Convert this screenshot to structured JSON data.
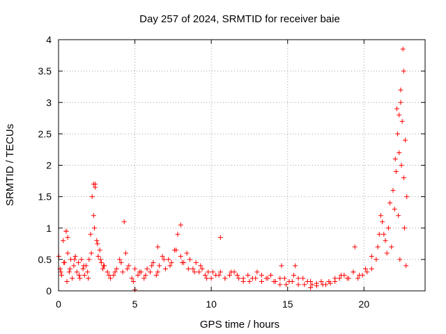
{
  "chart_data": {
    "type": "scatter",
    "title": "Day 257 of 2024, SRMTID for receiver baie",
    "xlabel": "GPS time / hours",
    "ylabel": "SRMTID / TECUs",
    "xlim": [
      0,
      24
    ],
    "ylim": [
      0,
      4
    ],
    "xticks": [
      0,
      5,
      10,
      15,
      20
    ],
    "yticks": [
      0,
      0.5,
      1,
      1.5,
      2,
      2.5,
      3,
      3.5,
      4
    ],
    "xtick_labels": [
      "0",
      "5",
      "10",
      "15",
      "20"
    ],
    "ytick_labels": [
      "0",
      "0.5",
      "1",
      "1.5",
      "2",
      "2.5",
      "3",
      "3.5",
      "4"
    ],
    "grid": true,
    "marker": "+",
    "color": "#ff0000",
    "series": [
      {
        "name": "SRMTID",
        "x": [
          0.02,
          0.1,
          0.2,
          0.3,
          0.4,
          0.5,
          0.6,
          0.7,
          0.8,
          0.9,
          1.0,
          1.1,
          1.2,
          1.3,
          1.4,
          1.5,
          1.6,
          1.7,
          1.8,
          1.9,
          2.0,
          2.1,
          2.2,
          2.3,
          2.4,
          2.5,
          2.6,
          2.7,
          2.8,
          2.9,
          3.0,
          3.2,
          3.4,
          3.6,
          3.8,
          4.0,
          4.2,
          4.4,
          4.6,
          4.8,
          5.0,
          5.2,
          5.4,
          5.6,
          5.8,
          6.0,
          6.2,
          6.4,
          6.6,
          6.8,
          7.0,
          7.2,
          7.4,
          7.6,
          7.8,
          8.0,
          8.2,
          8.4,
          8.6,
          8.8,
          9.0,
          9.2,
          9.4,
          9.6,
          9.8,
          10.0,
          10.3,
          10.6,
          10.9,
          11.2,
          11.5,
          11.8,
          12.1,
          12.4,
          12.7,
          13.0,
          13.3,
          13.6,
          13.9,
          14.2,
          14.5,
          14.8,
          15.1,
          15.4,
          15.7,
          16.0,
          16.3,
          16.6,
          16.9,
          17.2,
          17.5,
          17.8,
          18.1,
          18.4,
          18.7,
          19.0,
          19.3,
          19.6,
          19.9,
          20.2,
          20.5,
          20.8,
          21.0,
          21.2,
          21.4,
          21.6,
          21.8,
          22.0,
          22.1,
          22.2,
          22.3,
          22.4,
          22.5,
          22.6,
          22.7,
          22.8,
          0.5,
          0.6,
          2.3,
          2.4,
          4.3,
          6.5,
          8.0,
          10.6,
          14.6,
          15.5,
          19.4,
          22.55,
          22.6,
          22.4,
          22.3,
          0.15,
          0.35,
          0.55,
          0.75,
          1.05,
          1.35,
          1.65,
          1.95,
          2.15,
          2.35,
          2.55,
          2.75,
          2.95,
          3.3,
          3.7,
          4.1,
          4.5,
          4.9,
          5.3,
          5.7,
          6.1,
          6.5,
          6.9,
          7.3,
          7.7,
          8.1,
          8.5,
          8.9,
          9.3,
          9.7,
          10.1,
          10.5,
          10.9,
          11.3,
          11.7,
          12.1,
          12.5,
          12.9,
          13.3,
          13.7,
          14.1,
          14.5,
          14.9,
          15.3,
          15.7,
          16.1,
          16.5,
          16.9,
          17.3,
          17.7,
          18.1,
          18.5,
          18.9,
          19.3,
          19.7,
          20.1,
          20.5,
          20.9,
          21.1,
          21.3,
          21.5,
          21.7,
          21.9,
          22.05,
          22.15,
          22.25,
          22.35,
          22.45,
          22.65,
          22.75,
          5.0,
          16.5
        ],
        "y": [
          0.55,
          0.35,
          0.25,
          0.8,
          0.45,
          0.95,
          0.6,
          0.3,
          0.5,
          0.2,
          0.4,
          0.55,
          0.3,
          0.45,
          0.2,
          0.5,
          0.35,
          0.25,
          0.4,
          0.3,
          0.5,
          0.9,
          1.5,
          1.2,
          1.7,
          0.8,
          0.55,
          0.65,
          0.45,
          0.35,
          0.4,
          0.3,
          0.2,
          0.25,
          0.35,
          0.5,
          0.3,
          0.6,
          0.4,
          0.2,
          0.35,
          0.25,
          0.3,
          0.2,
          0.35,
          0.3,
          0.45,
          0.25,
          0.4,
          0.55,
          0.35,
          0.5,
          0.45,
          0.65,
          0.9,
          0.55,
          0.45,
          0.6,
          0.5,
          0.35,
          0.45,
          0.3,
          0.35,
          0.25,
          0.3,
          0.2,
          0.25,
          0.3,
          0.2,
          0.25,
          0.3,
          0.2,
          0.15,
          0.25,
          0.2,
          0.3,
          0.15,
          0.2,
          0.25,
          0.15,
          0.1,
          0.2,
          0.15,
          0.25,
          0.1,
          0.2,
          0.15,
          0.1,
          0.12,
          0.15,
          0.1,
          0.12,
          0.15,
          0.2,
          0.25,
          0.2,
          0.3,
          0.2,
          0.25,
          0.3,
          0.35,
          0.5,
          0.9,
          1.1,
          0.8,
          1.0,
          0.7,
          1.3,
          1.9,
          2.5,
          2.2,
          3.0,
          2.7,
          1.8,
          2.4,
          1.5,
          0.95,
          0.85,
          1.7,
          1.65,
          1.1,
          0.7,
          1.05,
          0.85,
          0.4,
          0.4,
          0.7,
          3.85,
          3.5,
          3.2,
          2.8,
          0.3,
          0.45,
          0.15,
          0.35,
          0.5,
          0.25,
          0.4,
          0.2,
          0.6,
          1.0,
          0.75,
          0.5,
          0.4,
          0.25,
          0.3,
          0.45,
          0.35,
          0.15,
          0.3,
          0.25,
          0.4,
          0.3,
          0.5,
          0.4,
          0.65,
          0.45,
          0.35,
          0.3,
          0.4,
          0.2,
          0.3,
          0.25,
          0.2,
          0.3,
          0.25,
          0.2,
          0.15,
          0.2,
          0.25,
          0.2,
          0.15,
          0.2,
          0.1,
          0.15,
          0.2,
          0.1,
          0.15,
          0.08,
          0.1,
          0.15,
          0.2,
          0.25,
          0.2,
          0.3,
          0.25,
          0.35,
          0.55,
          0.7,
          1.2,
          0.9,
          0.6,
          1.4,
          1.6,
          2.1,
          2.9,
          1.2,
          0.5,
          2.0,
          1.0,
          0.4,
          0.02,
          0.05
        ]
      }
    ]
  }
}
